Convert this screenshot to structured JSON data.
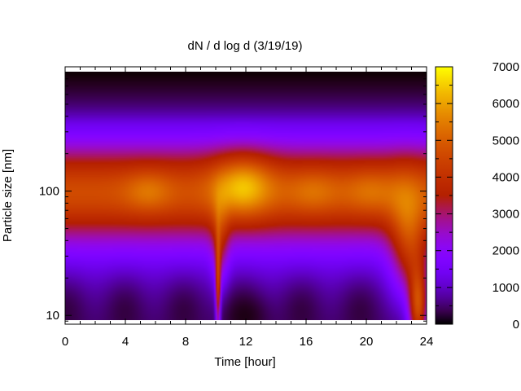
{
  "chart_data": {
    "type": "heatmap",
    "title": "dN / d log d (3/19/19)",
    "xlabel": "Time [hour]",
    "ylabel": "Particle size [nm]",
    "xlim": [
      0,
      24
    ],
    "x_ticks": [
      0,
      4,
      8,
      12,
      16,
      20,
      24
    ],
    "y_scale": "log",
    "ylim": [
      8.5,
      1000
    ],
    "y_ticks": [
      10,
      100
    ],
    "colorbar": {
      "range": [
        0,
        7000
      ],
      "ticks": [
        0,
        1000,
        2000,
        3000,
        4000,
        5000,
        6000,
        7000
      ],
      "palette": "gnuplot"
    },
    "grid": false,
    "hotspots": [
      {
        "time": 0,
        "size": 100,
        "value": 3400
      },
      {
        "time": 5.5,
        "size": 100,
        "value": 4000
      },
      {
        "time": 10.2,
        "size": 12,
        "value": 4200
      },
      {
        "time": 11.8,
        "size": 110,
        "value": 5500
      },
      {
        "time": 16.5,
        "size": 100,
        "value": 4100
      },
      {
        "time": 20.5,
        "size": 100,
        "value": 4100
      },
      {
        "time": 22.6,
        "size": 55,
        "value": 3700
      },
      {
        "time": 23.5,
        "size": 12,
        "value": 5200
      }
    ]
  }
}
